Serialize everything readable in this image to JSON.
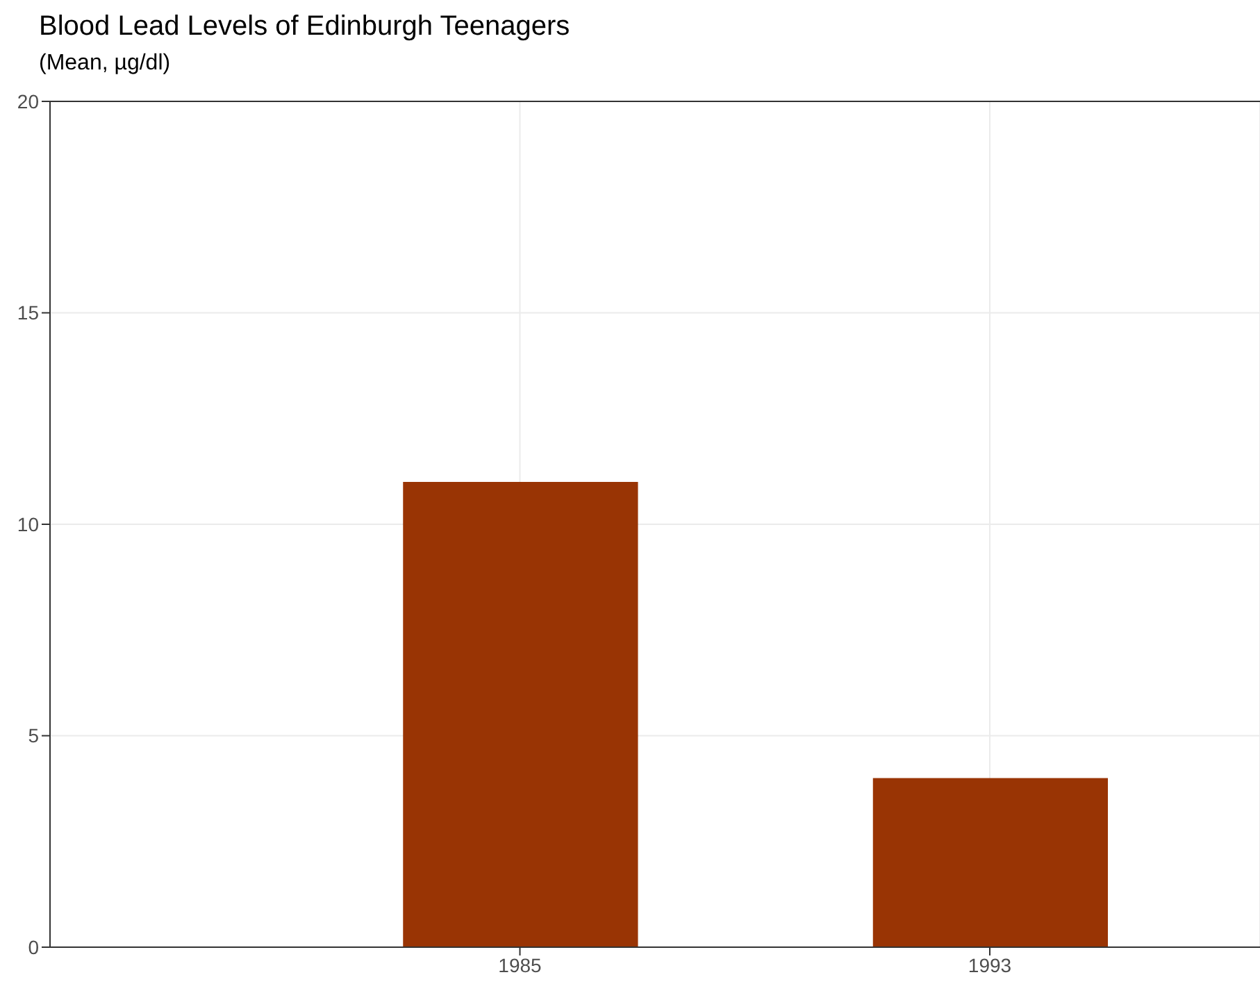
{
  "chart_data": {
    "type": "bar",
    "title": "Blood Lead Levels of Edinburgh Teenagers",
    "subtitle": "(Mean, µg/dl)",
    "x": [
      1985,
      1993
    ],
    "values": [
      11,
      4
    ],
    "color": "#993404",
    "xlim": [
      1977,
      1997.6
    ],
    "xticks": [
      1985,
      1993
    ],
    "ylim": [
      0,
      20
    ],
    "yticks": [
      0,
      5,
      10,
      15,
      20
    ],
    "grid": true
  }
}
